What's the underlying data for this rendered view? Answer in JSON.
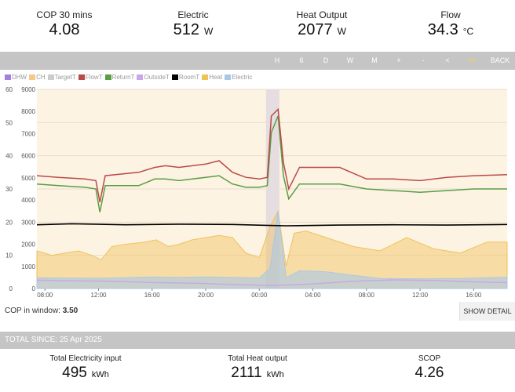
{
  "stats": [
    {
      "label": "COP 30 mins",
      "value": "4.08",
      "unit": ""
    },
    {
      "label": "Electric",
      "value": "512",
      "unit": "W"
    },
    {
      "label": "Heat Output",
      "value": "2077",
      "unit": "W"
    },
    {
      "label": "Flow",
      "value": "34.3",
      "unit": "°C"
    }
  ],
  "toolbar": {
    "buttons": [
      "H",
      "6",
      "D",
      "W",
      "M",
      "+",
      "-",
      "<",
      ">>",
      "BACK"
    ],
    "active_index": 8
  },
  "legend": [
    {
      "label": "DHW",
      "color": "#a57fe0"
    },
    {
      "label": "CH",
      "color": "#f4c98a"
    },
    {
      "label": "TargetT",
      "color": "#cccccc"
    },
    {
      "label": "FlowT",
      "color": "#b94a48"
    },
    {
      "label": "ReturnT",
      "color": "#5a9e44"
    },
    {
      "label": "OutsideT",
      "color": "#c8a8ea"
    },
    {
      "label": "RoomT",
      "color": "#000000"
    },
    {
      "label": "Heat",
      "color": "#f0c25a"
    },
    {
      "label": "Electric",
      "color": "#a9c8e8"
    }
  ],
  "chart_data": {
    "type": "line",
    "x_ticks": [
      "08:00",
      "12:00",
      "16:00",
      "20:00",
      "00:00",
      "04:00",
      "08:00",
      "12:00",
      "16:00"
    ],
    "y_left_ticks": [
      "0",
      "10",
      "20",
      "30",
      "40",
      "50",
      "60"
    ],
    "y_left_lim": [
      0,
      60
    ],
    "y_right_ticks": [
      "0",
      "1000",
      "2000",
      "3000",
      "4000",
      "5000",
      "6000",
      "7000",
      "8000",
      "9000"
    ],
    "y_right_lim": [
      0,
      9000
    ],
    "x_hours_range": [
      7.4,
      42.5
    ],
    "series": [
      {
        "name": "FlowT",
        "axis": "left",
        "hours": [
          7.4,
          9,
          11,
          11.8,
          12.1,
          12.5,
          15,
          16.2,
          17,
          18,
          19,
          20,
          21,
          22,
          23,
          24,
          24.6,
          24.9,
          25.4,
          25.8,
          26.2,
          27,
          30,
          32,
          34,
          36,
          38,
          40,
          42.5
        ],
        "values": [
          34.0,
          33.5,
          33.0,
          32.5,
          26,
          34,
          35,
          36.5,
          37,
          36.5,
          37,
          37.5,
          38.5,
          35,
          33.5,
          33.0,
          33.5,
          52,
          54,
          38,
          30,
          36.5,
          36.5,
          33.0,
          33.0,
          32.5,
          33.5,
          34.0,
          34.3
        ]
      },
      {
        "name": "ReturnT",
        "axis": "left",
        "hours": [
          7.4,
          9,
          11,
          11.8,
          12.1,
          12.5,
          15,
          16.2,
          17,
          18,
          19,
          20,
          21,
          22,
          23,
          24,
          24.6,
          24.9,
          25.4,
          25.8,
          26.2,
          27,
          30,
          32,
          34,
          36,
          38,
          40,
          42.5
        ],
        "values": [
          31.5,
          31.0,
          30.5,
          30.0,
          23,
          31,
          31,
          33,
          33,
          32.5,
          33,
          33.5,
          34,
          31.5,
          30.5,
          30.5,
          31,
          47,
          52,
          34,
          27,
          31.5,
          31.5,
          30.0,
          29.5,
          29.0,
          29.5,
          30.0,
          30.0
        ]
      },
      {
        "name": "RoomT",
        "axis": "left",
        "hours": [
          7.4,
          10,
          14,
          18,
          22,
          24.8,
          26,
          30,
          34,
          38,
          42.5
        ],
        "values": [
          19.2,
          19.5,
          19.2,
          19.4,
          19.3,
          19.0,
          18.9,
          19.1,
          19.2,
          19.1,
          19.3
        ]
      },
      {
        "name": "Heat",
        "axis": "right",
        "hours": [
          7.4,
          8.5,
          9.5,
          10.5,
          11.5,
          12.2,
          13,
          14,
          15.5,
          16.3,
          17.2,
          18,
          19,
          20,
          21,
          22,
          23,
          24,
          24.8,
          25.4,
          26,
          26.6,
          27.5,
          29,
          31,
          33,
          35,
          37,
          39,
          41,
          42.5
        ],
        "values": [
          1700,
          1500,
          1600,
          1700,
          1500,
          1300,
          1900,
          2000,
          2100,
          2200,
          1900,
          2000,
          2200,
          2300,
          2400,
          2300,
          1600,
          1400,
          2800,
          3500,
          1000,
          2500,
          2600,
          2300,
          1900,
          1700,
          2300,
          1800,
          1600,
          2100,
          2100
        ]
      },
      {
        "name": "Electric",
        "axis": "right",
        "hours": [
          7.4,
          10,
          12,
          14,
          16,
          18,
          20,
          22,
          24,
          24.8,
          25.4,
          26,
          27,
          29,
          31,
          33,
          36,
          39,
          42.5
        ],
        "values": [
          480,
          470,
          460,
          490,
          520,
          500,
          520,
          500,
          480,
          900,
          3500,
          500,
          800,
          750,
          600,
          450,
          440,
          450,
          512
        ]
      },
      {
        "name": "OutsideT",
        "axis": "left",
        "hours": [
          7.4,
          10,
          13,
          16,
          19,
          22,
          25,
          28,
          31,
          34,
          37,
          40,
          42.5
        ],
        "values": [
          2.5,
          2.3,
          2.2,
          1.8,
          1.6,
          1.2,
          0.9,
          1.4,
          2.2,
          2.6,
          2.4,
          2.0,
          1.8
        ]
      }
    ]
  },
  "cop_window": {
    "label": "COP in window:",
    "value": "3.50"
  },
  "show_detail_label": "SHOW DETAIL",
  "totals_header": "TOTAL SINCE: 25 Apr 2025",
  "totals": [
    {
      "label": "Total Electricity input",
      "value": "495",
      "unit": "kWh"
    },
    {
      "label": "Total Heat output",
      "value": "2111",
      "unit": "kWh"
    },
    {
      "label": "SCOP",
      "value": "4.26",
      "unit": ""
    }
  ]
}
